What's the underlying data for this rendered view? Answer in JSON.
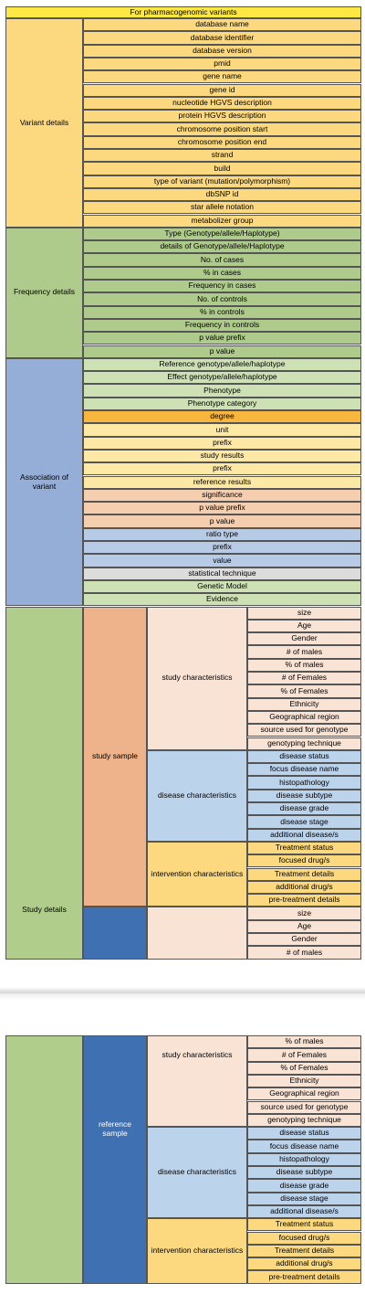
{
  "header": "For pharmacogenomic variants",
  "colors": {
    "header": "#fde843",
    "variant": "#fcd97f",
    "frequency": "#aecb8c",
    "association_group": "#94aed8",
    "study": "#b0cd8c",
    "study_sample": "#eeb38a",
    "reference_sample": "#3f71b2",
    "study_characteristics": "#f9e3d5",
    "disease_characteristics": "#bcd3ec",
    "intervention_characteristics": "#fcd97f",
    "assoc_light_green": "#cde1b4",
    "assoc_orange": "#f7b73e",
    "assoc_yellow": "#fde8a5",
    "assoc_peach": "#f4ceaf",
    "assoc_blue": "#b8cbe6",
    "assoc_grey": "#dcdcdc"
  },
  "variant": {
    "label": "Variant details",
    "items": [
      "database name",
      "database identifier",
      "database version",
      "pmid",
      "gene name",
      "gene id",
      "nucleotide HGVS description",
      "protein HGVS description",
      "chromosome position start",
      "chromosome position end",
      "strand",
      "build",
      "type of variant (mutation/polymorphism)",
      "dbSNP id",
      "star allele notation",
      "metabolizer group"
    ]
  },
  "frequency": {
    "label": "Frequency details",
    "items": [
      "Type (Genotype/allele/Haplotype)",
      "details of Genotype/allele/Haplotype",
      "No. of cases",
      "% in cases",
      "Frequency in cases",
      "No. of controls",
      "% in controls",
      "Frequency in controls",
      "p value prefix",
      "p value"
    ]
  },
  "association": {
    "label": "Association of variant",
    "items": [
      {
        "text": "Reference genotype/allele/haplotype",
        "c": "assoc_light_green"
      },
      {
        "text": "Effect genotype/allele/haplotype",
        "c": "assoc_light_green"
      },
      {
        "text": "Phenotype",
        "c": "assoc_light_green"
      },
      {
        "text": "Phenotype category",
        "c": "assoc_light_green"
      },
      {
        "text": "degree",
        "c": "assoc_orange"
      },
      {
        "text": "unit",
        "c": "assoc_yellow"
      },
      {
        "text": "prefix",
        "c": "assoc_yellow"
      },
      {
        "text": "study results",
        "c": "assoc_yellow"
      },
      {
        "text": "prefix",
        "c": "assoc_yellow"
      },
      {
        "text": "reference results",
        "c": "assoc_yellow"
      },
      {
        "text": "significance",
        "c": "assoc_peach"
      },
      {
        "text": "p value prefix",
        "c": "assoc_peach"
      },
      {
        "text": "p value",
        "c": "assoc_peach"
      },
      {
        "text": "ratio type",
        "c": "assoc_blue"
      },
      {
        "text": "prefix",
        "c": "assoc_blue"
      },
      {
        "text": "value",
        "c": "assoc_blue"
      },
      {
        "text": "statistical technique",
        "c": "assoc_grey"
      },
      {
        "text": "Genetic Model",
        "c": "assoc_light_green"
      },
      {
        "text": "Evidence",
        "c": "assoc_light_green"
      }
    ]
  },
  "study_details": {
    "label": "Study details",
    "study_sample": {
      "label": "study sample",
      "study_characteristics": {
        "label": "study characteristics",
        "items": [
          "size",
          "Age",
          "Gender",
          "# of males",
          "% of males",
          "# of Females",
          "% of Females",
          "Ethnicity",
          "Geographical region",
          "source used for genotype",
          "genotyping technique"
        ]
      },
      "disease_characteristics": {
        "label": "disease characteristics",
        "items": [
          "disease status",
          "focus disease name",
          "histopathology",
          "disease subtype",
          "disease grade",
          "disease stage",
          "additional disease/s"
        ]
      },
      "intervention_characteristics": {
        "label": "intervention characteristics",
        "items": [
          "Treatment status",
          "focused drug/s",
          "Treatment details",
          "additional drug/s",
          "pre-treatment details"
        ]
      }
    },
    "reference_sample_top": {
      "items": [
        "size",
        "Age",
        "Gender",
        "# of males"
      ]
    },
    "reference_sample": {
      "label": "reference sample",
      "study_characteristics": {
        "label": "study characteristics",
        "items": [
          "% of males",
          "# of Females",
          "% of Females",
          "Ethnicity",
          "Geographical region",
          "source used for genotype",
          "genotyping technique"
        ]
      },
      "disease_characteristics": {
        "label": "disease characteristics",
        "items": [
          "disease status",
          "focus disease name",
          "histopathology",
          "disease subtype",
          "disease grade",
          "disease stage",
          "additional disease/s"
        ]
      },
      "intervention_characteristics": {
        "label": "intervention characteristics",
        "items": [
          "Treatment status",
          "focused drug/s",
          "Treatment details",
          "additional drug/s",
          "pre-treatment details"
        ]
      }
    }
  }
}
